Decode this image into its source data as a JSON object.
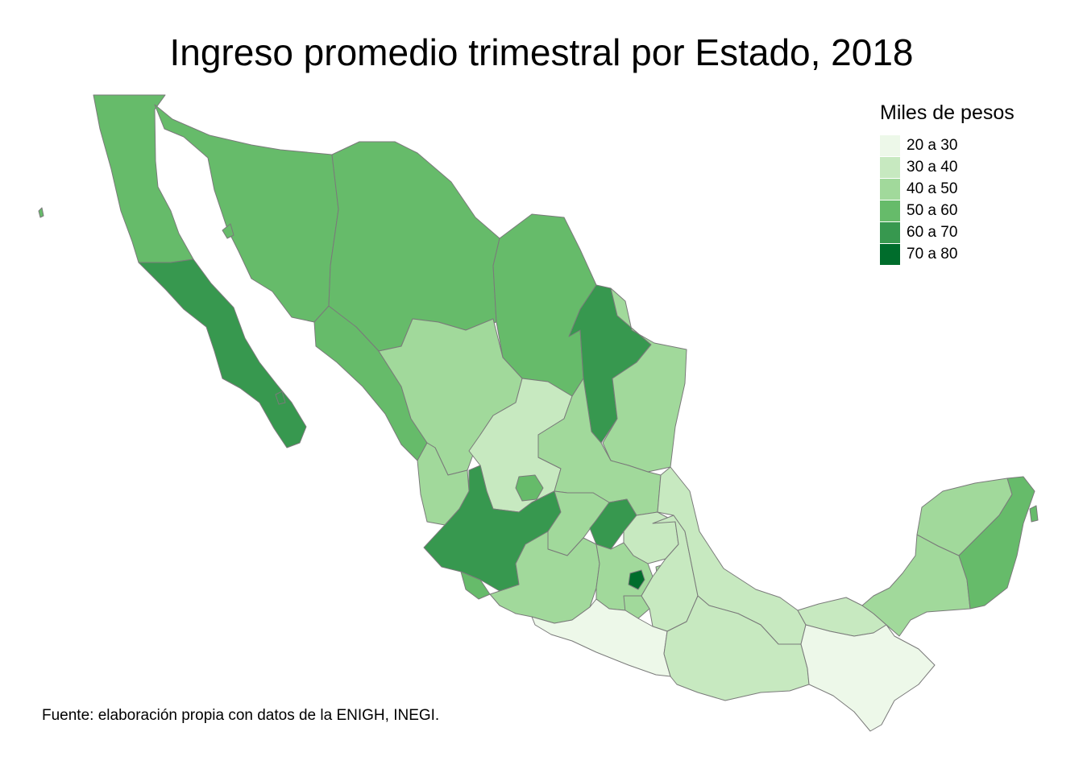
{
  "title": "Ingreso promedio trimestral por Estado, 2018",
  "legend": {
    "title": "Miles de pesos",
    "items": [
      {
        "label": "20 a 30",
        "color": "#edf8e9"
      },
      {
        "label": "30 a 40",
        "color": "#c7e9c0"
      },
      {
        "label": "40 a 50",
        "color": "#a1d99b"
      },
      {
        "label": "50 a 60",
        "color": "#66bb6a"
      },
      {
        "label": "60 a 70",
        "color": "#37984f"
      },
      {
        "label": "70 a 80",
        "color": "#006d2c"
      }
    ]
  },
  "caption": "Fuente: elaboración propia con datos de la ENIGH, INEGI.",
  "regions": [
    {
      "name": "Baja California",
      "bin": 3
    },
    {
      "name": "Baja California Sur",
      "bin": 4
    },
    {
      "name": "Sonora",
      "bin": 3
    },
    {
      "name": "Chihuahua",
      "bin": 3
    },
    {
      "name": "Coahuila",
      "bin": 3
    },
    {
      "name": "Nuevo León",
      "bin": 4
    },
    {
      "name": "Tamaulipas",
      "bin": 2
    },
    {
      "name": "Sinaloa",
      "bin": 3
    },
    {
      "name": "Durango",
      "bin": 2
    },
    {
      "name": "Zacatecas",
      "bin": 1
    },
    {
      "name": "San Luis Potosí",
      "bin": 2
    },
    {
      "name": "Nayarit",
      "bin": 2
    },
    {
      "name": "Aguascalientes",
      "bin": 3
    },
    {
      "name": "Jalisco",
      "bin": 4
    },
    {
      "name": "Guanajuato",
      "bin": 2
    },
    {
      "name": "Querétaro",
      "bin": 4
    },
    {
      "name": "Hidalgo",
      "bin": 1
    },
    {
      "name": "Colima",
      "bin": 3
    },
    {
      "name": "Michoacán",
      "bin": 2
    },
    {
      "name": "Estado de México",
      "bin": 2
    },
    {
      "name": "Ciudad de México",
      "bin": 5
    },
    {
      "name": "Tlaxcala",
      "bin": 2
    },
    {
      "name": "Morelos",
      "bin": 2
    },
    {
      "name": "Puebla",
      "bin": 1
    },
    {
      "name": "Veracruz",
      "bin": 1
    },
    {
      "name": "Guerrero",
      "bin": 0
    },
    {
      "name": "Oaxaca",
      "bin": 1
    },
    {
      "name": "Tabasco",
      "bin": 1
    },
    {
      "name": "Chiapas",
      "bin": 0
    },
    {
      "name": "Campeche",
      "bin": 2
    },
    {
      "name": "Yucatán",
      "bin": 2
    },
    {
      "name": "Quintana Roo",
      "bin": 3
    }
  ]
}
